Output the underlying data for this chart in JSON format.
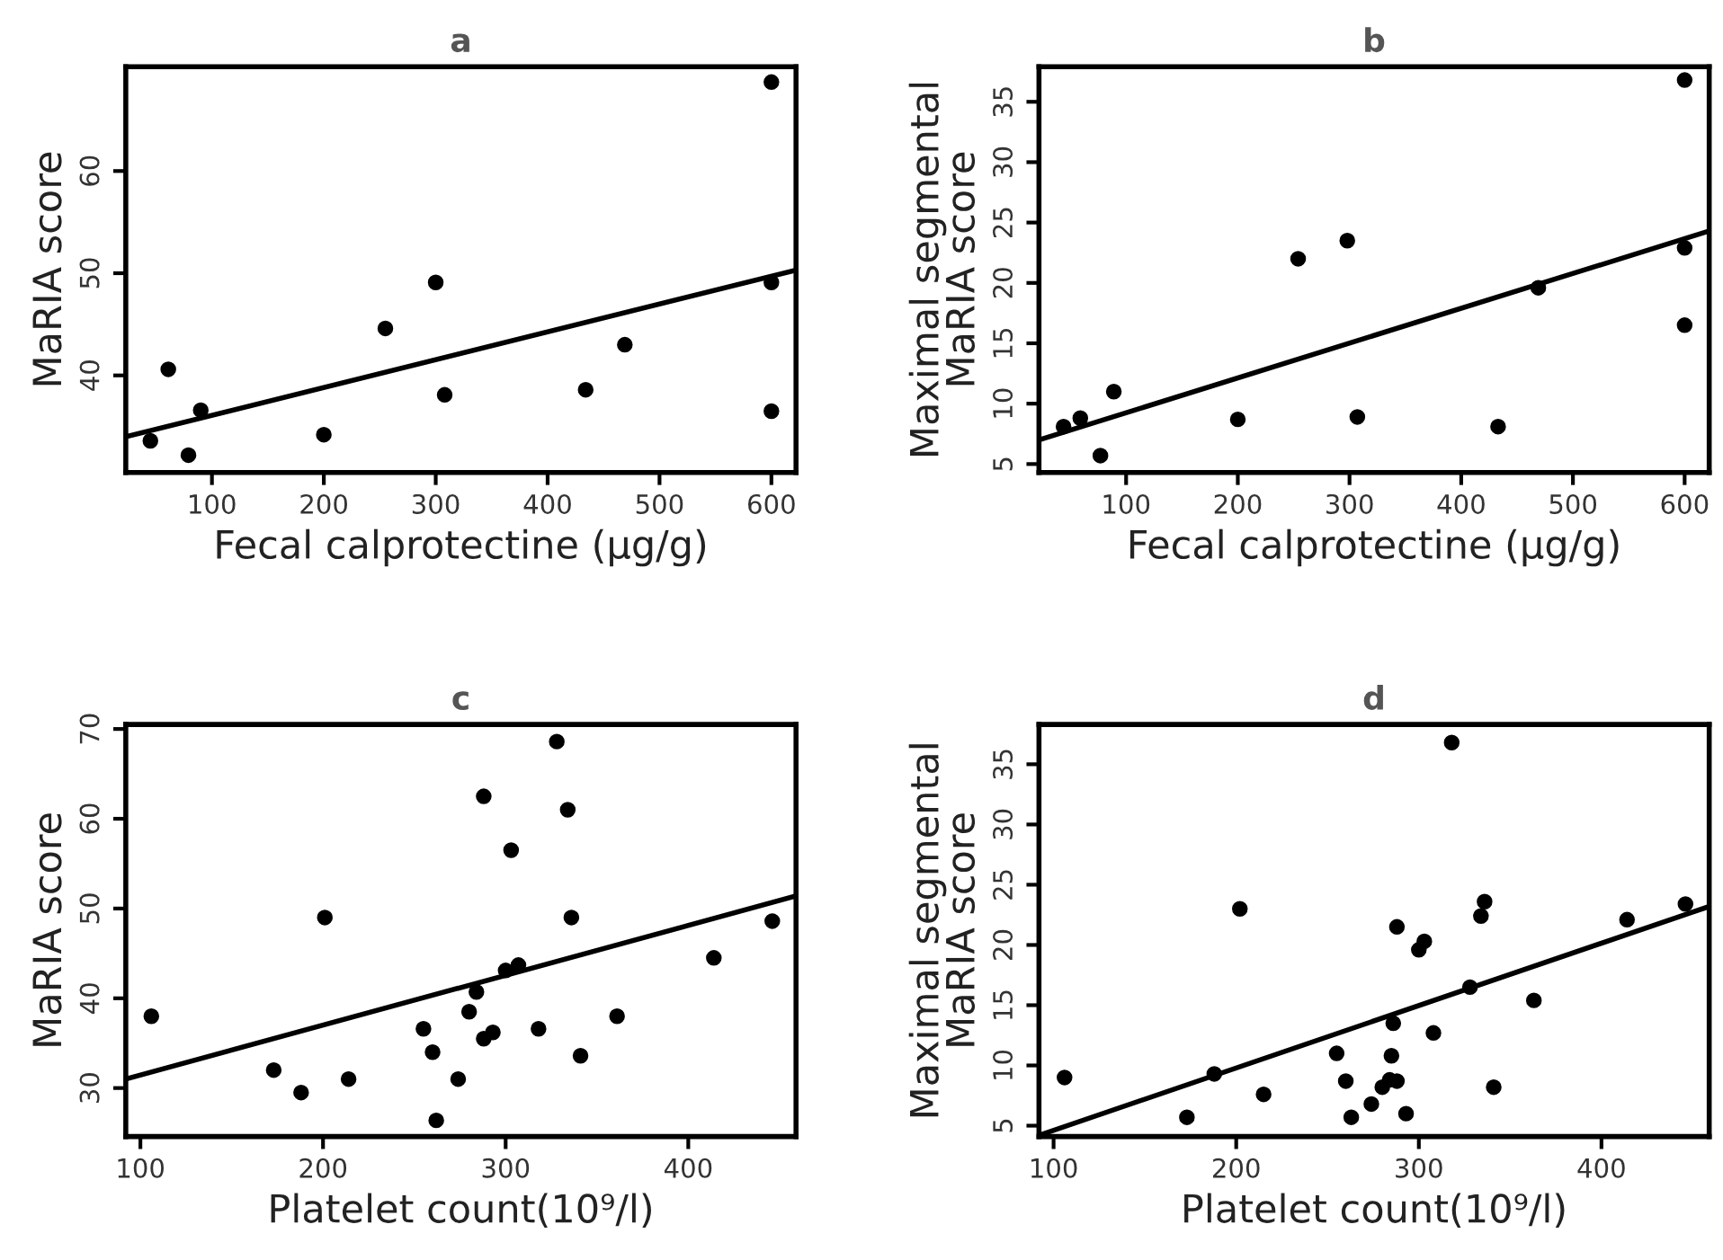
{
  "chart_data": [
    {
      "type": "scatter",
      "title": "a",
      "xlabel": "Fecal calprotectine (µg/g)",
      "ylabel": "MaRIA score",
      "xlim": [
        23,
        622
      ],
      "ylim": [
        30.5,
        70.2
      ],
      "xticks": [
        100,
        200,
        300,
        400,
        500,
        600
      ],
      "yticks": [
        40,
        50,
        60
      ],
      "grid": false,
      "legend": false,
      "series": [
        {
          "marker": "circle",
          "color": "#000000",
          "x": [
            45,
            61,
            79,
            90,
            200,
            255,
            300,
            308,
            434,
            469,
            600,
            600,
            600
          ],
          "values": [
            33.6,
            40.6,
            32.2,
            36.6,
            34.2,
            44.6,
            49.1,
            38.1,
            38.6,
            43.0,
            68.7,
            49.1,
            36.5
          ]
        },
        {
          "type": "line",
          "color": "#000000",
          "x": [
            23,
            622
          ],
          "values": [
            34.0,
            50.3
          ]
        }
      ]
    },
    {
      "type": "scatter",
      "title": "b",
      "xlabel": "Fecal calprotectine (µg/g)",
      "ylabel": "Maximal segmental\nMaRIA score",
      "xlim": [
        22,
        622
      ],
      "ylim": [
        4.3,
        37.9
      ],
      "xticks": [
        100,
        200,
        300,
        400,
        500,
        600
      ],
      "yticks": [
        5,
        10,
        15,
        20,
        25,
        30,
        35
      ],
      "grid": false,
      "legend": false,
      "series": [
        {
          "marker": "circle",
          "color": "#000000",
          "x": [
            44,
            59,
            77,
            89,
            200,
            254,
            298,
            307,
            433,
            469,
            600,
            600,
            600
          ],
          "values": [
            8.1,
            8.8,
            5.7,
            11.0,
            8.7,
            22.0,
            23.5,
            8.9,
            8.1,
            19.6,
            36.8,
            22.9,
            16.5
          ]
        },
        {
          "type": "line",
          "color": "#000000",
          "x": [
            22,
            622
          ],
          "values": [
            7.0,
            24.3
          ]
        }
      ]
    },
    {
      "type": "scatter",
      "title": "c",
      "xlabel": "Platelet count(10⁹/l)",
      "ylabel": "MaRIA score",
      "xlim": [
        92,
        459
      ],
      "ylim": [
        24.6,
        70.5
      ],
      "xticks": [
        100,
        200,
        300,
        400
      ],
      "yticks": [
        30,
        40,
        50,
        60,
        70
      ],
      "grid": false,
      "legend": false,
      "series": [
        {
          "marker": "circle",
          "color": "#000000",
          "x": [
            106,
            173,
            188,
            201,
            214,
            255,
            260,
            262,
            274,
            280,
            284,
            288,
            288,
            293,
            300,
            303,
            307,
            318,
            328,
            334,
            336,
            341,
            361,
            414,
            446
          ],
          "values": [
            38.0,
            32.0,
            29.5,
            49.0,
            31.0,
            36.6,
            34.0,
            26.4,
            31.0,
            38.5,
            40.7,
            62.5,
            35.5,
            36.2,
            43.1,
            56.5,
            43.7,
            36.6,
            68.6,
            61.0,
            49.0,
            33.6,
            38.0,
            44.5,
            48.6
          ]
        },
        {
          "type": "line",
          "color": "#000000",
          "x": [
            92,
            459
          ],
          "values": [
            31.0,
            51.4
          ]
        }
      ]
    },
    {
      "type": "scatter",
      "title": "d",
      "xlabel": "Platelet count(10⁹/l)",
      "ylabel": "Maximal segmental\nMaRIA score",
      "xlim": [
        92,
        459
      ],
      "ylim": [
        4.1,
        38.3
      ],
      "xticks": [
        100,
        200,
        300,
        400
      ],
      "yticks": [
        5,
        10,
        15,
        20,
        25,
        30,
        35
      ],
      "grid": false,
      "legend": false,
      "series": [
        {
          "marker": "circle",
          "color": "#000000",
          "x": [
            106,
            173,
            188,
            202,
            215,
            255,
            260,
            263,
            274,
            280,
            284,
            285,
            286,
            288,
            288,
            293,
            300,
            303,
            308,
            318,
            328,
            334,
            336,
            341,
            363,
            414,
            446
          ],
          "values": [
            9.0,
            5.7,
            9.3,
            23.0,
            7.6,
            11.0,
            8.7,
            5.7,
            6.8,
            8.2,
            8.8,
            10.8,
            13.5,
            21.5,
            8.7,
            6.0,
            19.6,
            20.3,
            12.7,
            36.8,
            16.5,
            22.4,
            23.6,
            8.2,
            15.4,
            22.1,
            23.4
          ]
        },
        {
          "type": "line",
          "color": "#000000",
          "x": [
            92,
            459
          ],
          "values": [
            4.2,
            23.2
          ]
        }
      ]
    }
  ]
}
